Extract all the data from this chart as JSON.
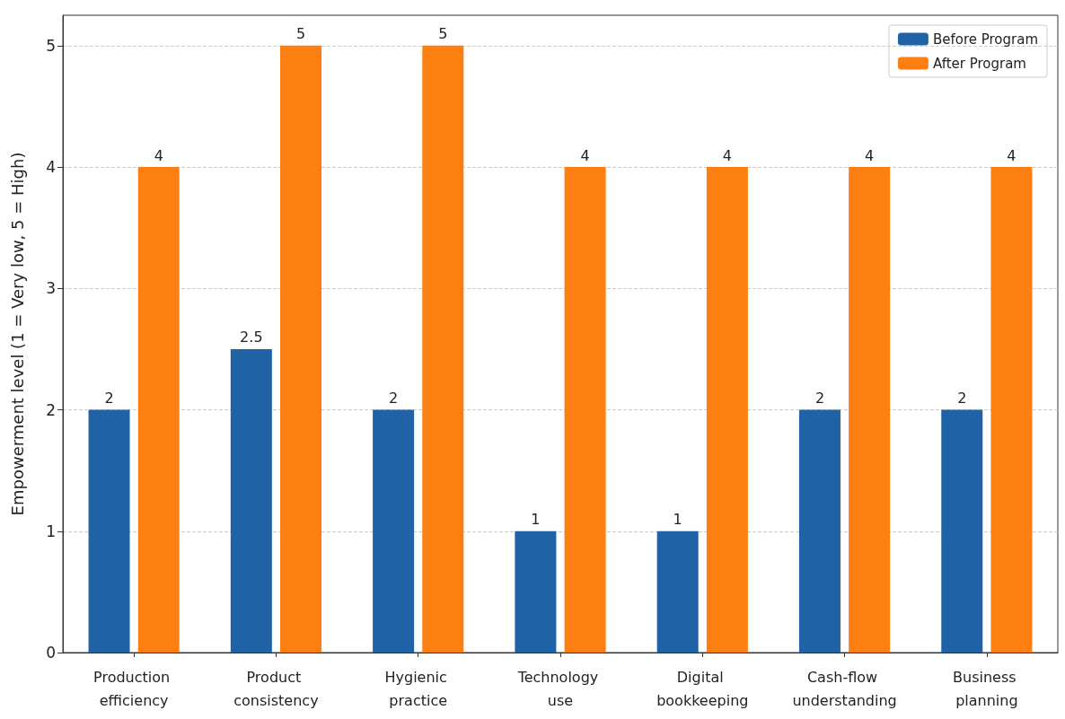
{
  "chart_data": {
    "type": "bar",
    "ylabel": "Empowerment level (1 = Very low, 5 = High)",
    "categories": [
      "Production efficiency",
      "Product consistency",
      "Hygienic practice",
      "Technology use",
      "Digital bookkeeping",
      "Cash-flow understanding",
      "Business planning"
    ],
    "series": [
      {
        "name": "Before Program",
        "color": "#1f63a6",
        "values": [
          2,
          2.5,
          2,
          1,
          1,
          2,
          2
        ]
      },
      {
        "name": "After Program",
        "color": "#fd7f12",
        "values": [
          4,
          5,
          5,
          4,
          4,
          4,
          4
        ]
      }
    ],
    "ylim": [
      0,
      5.25
    ],
    "yticks": [
      0,
      1,
      2,
      3,
      4,
      5
    ],
    "grid": "y",
    "legend": "top right",
    "data_labels": true
  }
}
